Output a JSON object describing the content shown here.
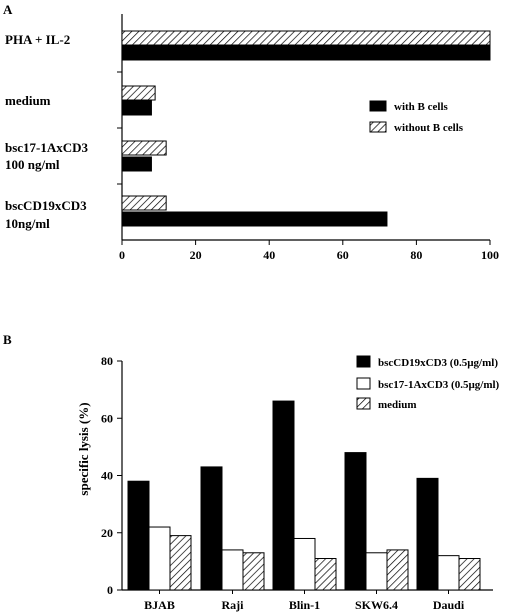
{
  "colors": {
    "black": "#000000",
    "white": "#ffffff",
    "hatch": "#000000"
  },
  "chart_data": [
    {
      "panel": "A",
      "type": "bar",
      "orientation": "horizontal",
      "categories": [
        [
          "PHA + IL-2"
        ],
        [
          "medium"
        ],
        [
          "bsc17-1AxCD3",
          "100 ng/ml"
        ],
        [
          "bscCD19xCD3",
          "10ng/ml"
        ]
      ],
      "series": [
        {
          "name": "with B cells",
          "fill": "solid",
          "values": [
            100,
            8,
            8,
            72
          ]
        },
        {
          "name": "without B cells",
          "fill": "hatched",
          "values": [
            100,
            9,
            12,
            12
          ]
        }
      ],
      "xlim": [
        0,
        100
      ],
      "xticks": [
        0,
        20,
        40,
        60,
        80,
        100
      ],
      "legend_position": "right",
      "grid": false
    },
    {
      "panel": "B",
      "type": "bar",
      "orientation": "vertical",
      "categories": [
        "BJAB",
        "Raji",
        "Blin-1",
        "SKW6.4",
        "Daudi"
      ],
      "series": [
        {
          "name": "bscCD19xCD3 (0.5µg/ml)",
          "fill": "solid",
          "values": [
            38,
            43,
            66,
            48,
            39
          ]
        },
        {
          "name": "bsc17-1AxCD3 (0.5µg/ml)",
          "fill": "open",
          "values": [
            22,
            14,
            18,
            13,
            12
          ]
        },
        {
          "name": "medium",
          "fill": "hatched",
          "values": [
            19,
            13,
            11,
            14,
            11
          ]
        }
      ],
      "ylabel": "specific lysis (%)",
      "ylim": [
        0,
        80
      ],
      "yticks": [
        0,
        20,
        40,
        60,
        80
      ],
      "legend_position": "top-right",
      "grid": false
    }
  ]
}
